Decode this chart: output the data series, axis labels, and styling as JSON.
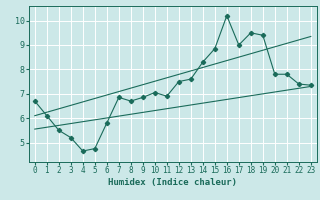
{
  "xlabel": "Humidex (Indice chaleur)",
  "background_color": "#cce8e8",
  "grid_color": "#ffffff",
  "line_color": "#1a6b5a",
  "xlim": [
    -0.5,
    23.5
  ],
  "ylim": [
    4.2,
    10.6
  ],
  "xticks": [
    0,
    1,
    2,
    3,
    4,
    5,
    6,
    7,
    8,
    9,
    10,
    11,
    12,
    13,
    14,
    15,
    16,
    17,
    18,
    19,
    20,
    21,
    22,
    23
  ],
  "yticks": [
    5,
    6,
    7,
    8,
    9,
    10
  ],
  "line1_x": [
    0,
    1,
    2,
    3,
    4,
    5,
    6,
    7,
    8,
    9,
    10,
    11,
    12,
    13,
    14,
    15,
    16,
    17,
    18,
    19,
    20,
    21,
    22,
    23
  ],
  "line1_y": [
    6.7,
    6.1,
    5.5,
    5.2,
    4.65,
    4.75,
    5.8,
    6.85,
    6.7,
    6.85,
    7.05,
    6.9,
    7.5,
    7.6,
    8.3,
    8.85,
    10.2,
    9.0,
    9.5,
    9.4,
    7.8,
    7.8,
    7.4,
    7.35
  ],
  "line2_x": [
    0,
    23
  ],
  "line2_y": [
    5.55,
    7.3
  ],
  "line3_x": [
    0,
    23
  ],
  "line3_y": [
    6.1,
    9.35
  ],
  "tick_fontsize": 5.5,
  "xlabel_fontsize": 6.5
}
